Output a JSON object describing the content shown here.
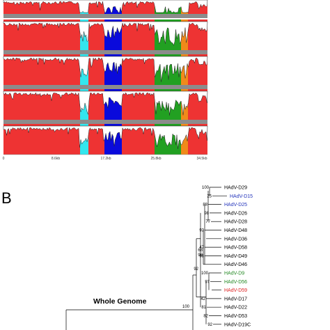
{
  "panel_a": {
    "x_ticks": [
      "0",
      "8.6kb",
      "17.2kb",
      "25.8kb",
      "34.5kb"
    ],
    "colors": {
      "red": "#ee3333",
      "cyan": "#33e6ee",
      "blue": "#0a0adc",
      "green": "#22a022",
      "orange": "#f08a1a",
      "divider": "#8c8c8c"
    },
    "rows": 5
  },
  "panel_b": {
    "letter": "B",
    "tree_title": "Whole Genome",
    "leaves": [
      {
        "label": "HAdV-D29",
        "color": "#000000",
        "bootstrap": "100"
      },
      {
        "label": "HAdV-D15",
        "color": "#2233bb",
        "bootstrap": "25"
      },
      {
        "label": "HAdV-D25",
        "color": "#2233bb",
        "bootstrap": "88"
      },
      {
        "label": "HAdV-D26",
        "color": "#000000",
        "bootstrap": "98"
      },
      {
        "label": "HAdV-D28",
        "color": "#000000",
        "bootstrap": "77"
      },
      {
        "label": "HAdV-D48",
        "color": "#000000",
        "bootstrap": "93"
      },
      {
        "label": "HAdV-D36",
        "color": "#000000",
        "bootstrap": ""
      },
      {
        "label": "HAdV-D58",
        "color": "#000000",
        "bootstrap": "47"
      },
      {
        "label": "HAdV-D49",
        "color": "#000000",
        "bootstrap": "98"
      },
      {
        "label": "HAdV-D46",
        "color": "#000000",
        "bootstrap": ""
      },
      {
        "label": "HAdV-D9",
        "color": "#228822",
        "bootstrap": "100"
      },
      {
        "label": "HAdV-D56",
        "color": "#228822",
        "bootstrap": "97"
      },
      {
        "label": "HAdV-D59",
        "color": "#dd2222",
        "bootstrap": ""
      },
      {
        "label": "HAdV-D17",
        "color": "#000000",
        "bootstrap": "42"
      },
      {
        "label": "HAdV-D22",
        "color": "#000000",
        "bootstrap": "81"
      },
      {
        "label": "HAdV-D53",
        "color": "#000000",
        "bootstrap": "82"
      },
      {
        "label": "HAdV-D19C",
        "color": "#000000",
        "bootstrap": "92"
      }
    ],
    "internal_bootstraps": {
      "deep": "92",
      "root": "100",
      "mid": "68",
      "mid2": "98"
    }
  }
}
